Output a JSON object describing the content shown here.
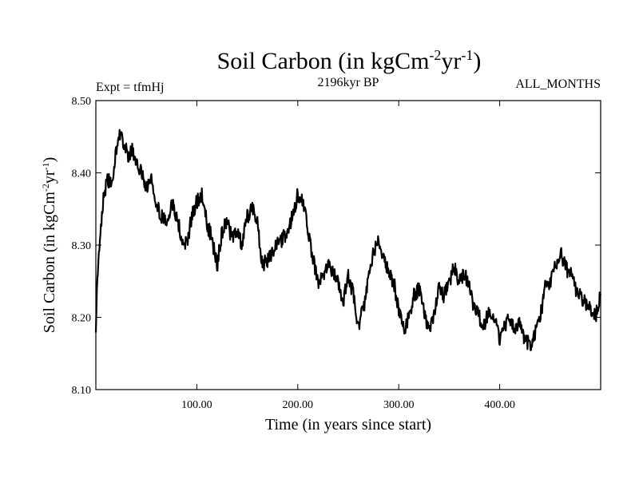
{
  "chart_data": {
    "type": "line",
    "title_main": "Soil Carbon (in kgCm",
    "title_exp1": "-2",
    "title_mid": "yr",
    "title_exp2": "-1",
    "title_end": ")",
    "subtitle_left": "Expt = tfmHj",
    "subtitle_center": "2196kyr BP",
    "subtitle_right": "ALL_MONTHS",
    "xlabel": "Time (in years since start)",
    "ylabel_main": "Soil Carbon (in kgCm",
    "ylabel_exp1": "-2",
    "ylabel_mid": "yr",
    "ylabel_exp2": "-1",
    "ylabel_end": ")",
    "xlim": [
      0,
      500
    ],
    "ylim": [
      8.1,
      8.5
    ],
    "x_ticks": [
      100,
      200,
      300,
      400
    ],
    "x_tick_labels": [
      "100.00",
      "200.00",
      "300.00",
      "400.00"
    ],
    "y_ticks": [
      8.1,
      8.2,
      8.3,
      8.4,
      8.5
    ],
    "y_tick_labels": [
      "8.10",
      "8.20",
      "8.30",
      "8.40",
      "8.50"
    ],
    "line_color": "#000000",
    "series": [
      {
        "name": "Soil Carbon",
        "x": [
          0,
          2,
          5,
          8,
          12,
          16,
          20,
          25,
          28,
          32,
          36,
          40,
          45,
          50,
          55,
          60,
          65,
          70,
          75,
          80,
          85,
          90,
          95,
          100,
          105,
          110,
          115,
          120,
          125,
          130,
          135,
          140,
          145,
          150,
          155,
          160,
          165,
          170,
          175,
          180,
          185,
          190,
          195,
          200,
          205,
          210,
          215,
          220,
          225,
          230,
          235,
          240,
          245,
          250,
          255,
          260,
          265,
          270,
          275,
          280,
          285,
          290,
          295,
          300,
          305,
          310,
          315,
          320,
          325,
          330,
          335,
          340,
          345,
          350,
          355,
          360,
          365,
          370,
          375,
          380,
          385,
          390,
          395,
          400,
          405,
          410,
          415,
          420,
          425,
          430,
          435,
          440,
          445,
          450,
          455,
          460,
          465,
          470,
          475,
          480,
          485,
          490,
          495,
          500
        ],
        "y": [
          8.19,
          8.27,
          8.33,
          8.37,
          8.39,
          8.38,
          8.43,
          8.46,
          8.44,
          8.42,
          8.43,
          8.41,
          8.4,
          8.38,
          8.39,
          8.36,
          8.34,
          8.33,
          8.36,
          8.34,
          8.31,
          8.3,
          8.34,
          8.36,
          8.37,
          8.33,
          8.31,
          8.27,
          8.32,
          8.33,
          8.31,
          8.32,
          8.3,
          8.34,
          8.35,
          8.33,
          8.27,
          8.28,
          8.29,
          8.3,
          8.31,
          8.32,
          8.34,
          8.37,
          8.36,
          8.32,
          8.28,
          8.25,
          8.26,
          8.27,
          8.26,
          8.25,
          8.22,
          8.26,
          8.23,
          8.19,
          8.21,
          8.26,
          8.29,
          8.31,
          8.28,
          8.26,
          8.25,
          8.21,
          8.18,
          8.2,
          8.23,
          8.24,
          8.21,
          8.18,
          8.2,
          8.24,
          8.23,
          8.25,
          8.27,
          8.25,
          8.26,
          8.24,
          8.21,
          8.2,
          8.19,
          8.21,
          8.2,
          8.17,
          8.19,
          8.2,
          8.18,
          8.19,
          8.17,
          8.16,
          8.18,
          8.2,
          8.24,
          8.25,
          8.27,
          8.29,
          8.27,
          8.26,
          8.24,
          8.23,
          8.22,
          8.21,
          8.2,
          8.23
        ]
      }
    ]
  }
}
